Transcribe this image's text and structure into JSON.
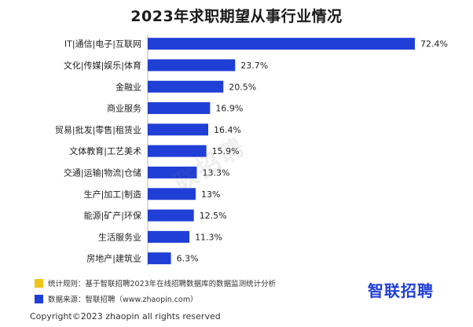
{
  "title": "2023年求职期望从事行业情况",
  "colors": {
    "bar": "#1f3fd6",
    "note_method": "#f0c419",
    "note_source": "#1f3fd6"
  },
  "watermark": "联招聘",
  "notes": {
    "method": "统计规则：基于智联招聘2023年在线招聘数据库的数据监测统计分析",
    "source": "数据来源：智联招聘（www.zhaopin.com）"
  },
  "brand": "智联招聘",
  "copyright": "Copyright©2023 zhaopin all rights reserved",
  "chart_data": {
    "type": "bar",
    "orientation": "horizontal",
    "title": "2023年求职期望从事行业情况",
    "categories": [
      "IT|通信|电子|互联网",
      "文化|传媒|娱乐|体育",
      "金融业",
      "商业服务",
      "贸易|批发|零售|租赁业",
      "文体教育|工艺美术",
      "交通|运输|物流|仓储",
      "生产|加工|制造",
      "能源|矿产|环保",
      "生活服务业",
      "房地产|建筑业"
    ],
    "values": [
      72.4,
      23.7,
      20.5,
      16.9,
      16.4,
      15.9,
      13.3,
      13,
      12.5,
      11.3,
      6.3
    ],
    "value_labels": [
      "72.4%",
      "23.7%",
      "20.5%",
      "16.9%",
      "16.4%",
      "15.9%",
      "13.3%",
      "13%",
      "12.5%",
      "11.3%",
      "6.3%"
    ],
    "xlim": [
      0,
      72.4
    ],
    "grid": false
  }
}
